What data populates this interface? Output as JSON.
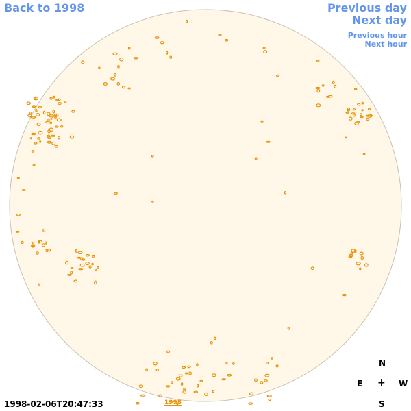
{
  "nav": {
    "back_label": "Back to 1998",
    "prev_day_label": "Previous day",
    "next_day_label": "Next day",
    "prev_hour_label": "Previous hour",
    "next_hour_label": "Next hour"
  },
  "compass": {
    "n": "N",
    "e": "E",
    "center": "+",
    "w": "W",
    "s": "S"
  },
  "timestamp": "1998-02-06T20:47:33",
  "year_link": "1998",
  "colors": {
    "disk_fill": "#FFF8E8",
    "disk_stroke": "#C8C0B0",
    "contour": "#E8920A",
    "link": "#6495ED"
  },
  "icons": {
    "disk": "solar-disk-icon"
  }
}
